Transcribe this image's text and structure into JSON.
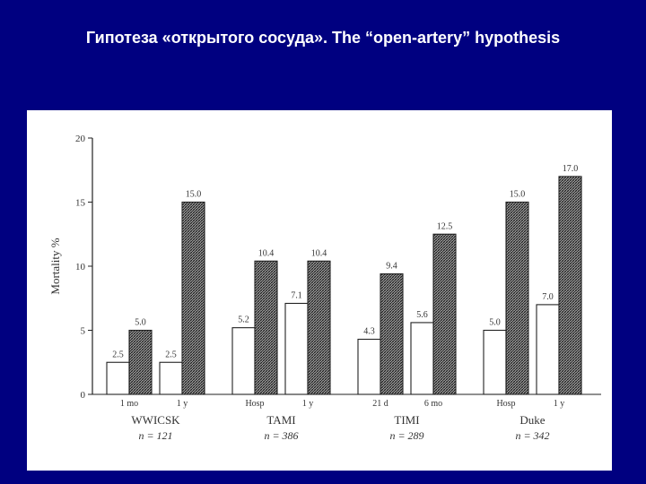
{
  "slide": {
    "title": "Гипотеза «открытого сосуда». The “open-artery” hypothesis"
  },
  "chart_data": {
    "type": "bar",
    "ylabel": "Mortality %",
    "ylim": [
      0,
      20
    ],
    "yticks": [
      0,
      5,
      10,
      15,
      20
    ],
    "groups": [
      {
        "name": "WWICSK",
        "n_label": "n = 121",
        "periods": [
          {
            "label": "1 mo",
            "values": [
              2.5,
              5.0
            ],
            "value_labels": [
              "2.5",
              "5.0"
            ]
          },
          {
            "label": "1 y",
            "values": [
              2.5,
              15.0
            ],
            "value_labels": [
              "2.5",
              "15.0"
            ]
          }
        ]
      },
      {
        "name": "TAMI",
        "n_label": "n = 386",
        "periods": [
          {
            "label": "Hosp",
            "values": [
              5.2,
              10.4
            ],
            "value_labels": [
              "5.2",
              "10.4"
            ]
          },
          {
            "label": "1 y",
            "values": [
              7.1,
              10.4
            ],
            "value_labels": [
              "7.1",
              "10.4"
            ]
          }
        ]
      },
      {
        "name": "TIMI",
        "n_label": "n = 289",
        "periods": [
          {
            "label": "21 d",
            "values": [
              4.3,
              9.4
            ],
            "value_labels": [
              "4.3",
              "9.4"
            ]
          },
          {
            "label": "6 mo",
            "values": [
              5.6,
              12.5
            ],
            "value_labels": [
              "5.6",
              "12.5"
            ]
          }
        ]
      },
      {
        "name": "Duke",
        "n_label": "n = 342",
        "periods": [
          {
            "label": "Hosp",
            "values": [
              5.0,
              15.0
            ],
            "value_labels": [
              "5.0",
              "15.0"
            ]
          },
          {
            "label": "1 y",
            "values": [
              7.0,
              17.0
            ],
            "value_labels": [
              "7.0",
              "17.0"
            ]
          }
        ]
      }
    ],
    "series_colors": [
      "#ffffff",
      "#8a8a8a"
    ]
  }
}
